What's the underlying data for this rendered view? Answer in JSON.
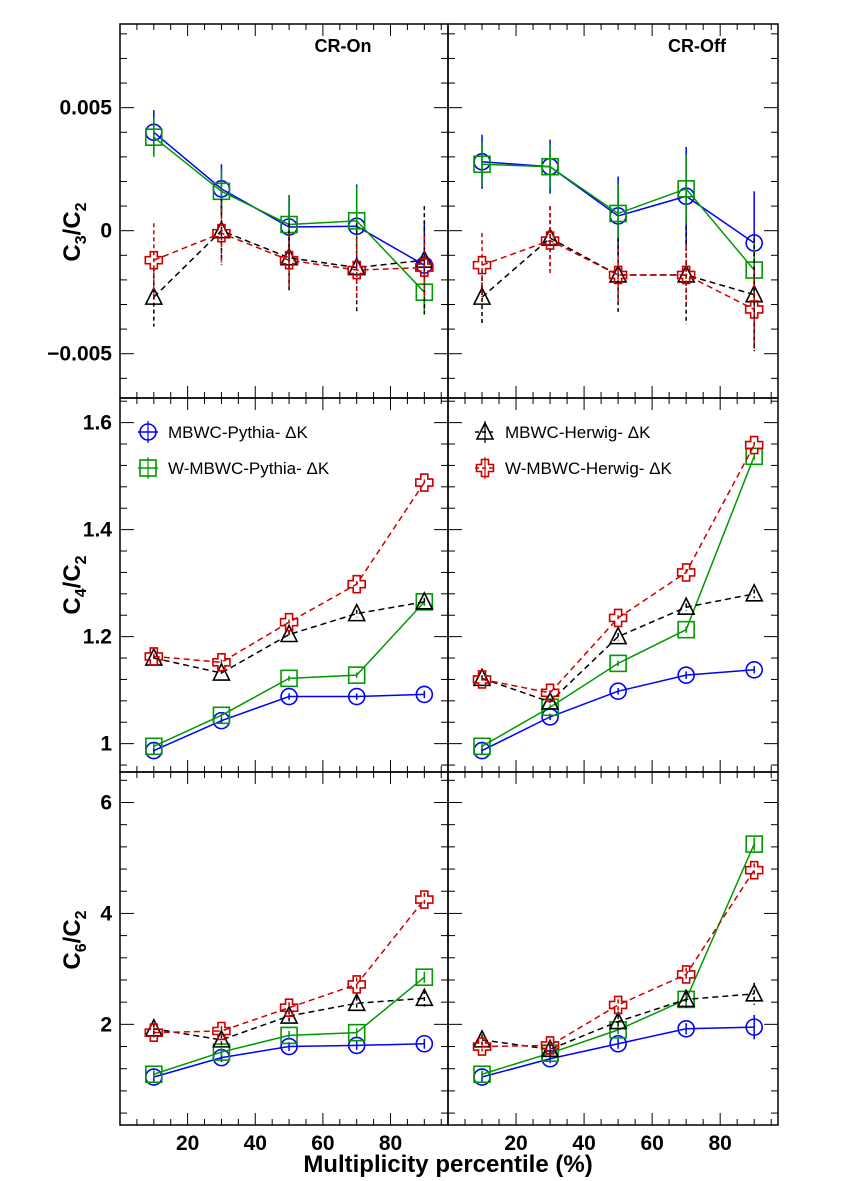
{
  "figure": {
    "xlabel": "Multiplicity percentile (%)",
    "columns": [
      "CR-On",
      "CR-Off"
    ],
    "xticks": [
      "20",
      "40",
      "60",
      "80"
    ]
  },
  "legend": [
    {
      "label": "MBWC-Pythia- ΔK",
      "series": "mbwc_pythia"
    },
    {
      "label": "W-MBWC-Pythia- ΔK",
      "series": "wmbwc_pythia"
    },
    {
      "label": "MBWC-Herwig- ΔK",
      "series": "mbwc_herwig"
    },
    {
      "label": "W-MBWC-Herwig- ΔK",
      "series": "wmbwc_herwig"
    }
  ],
  "chart_data": [
    {
      "type": "line",
      "panel": "C3/C2 CR-On",
      "ylabel": "C3/C2",
      "column_title": "CR-On",
      "x": [
        10,
        30,
        50,
        70,
        90
      ],
      "xlim": [
        0,
        97
      ],
      "ylim": [
        -0.0068,
        0.0084
      ],
      "yticks": [
        -0.005,
        0,
        0.005
      ],
      "yticklabels": [
        "−0.005",
        "0",
        "0.005"
      ],
      "series": [
        {
          "name": "MBWC-Pythia- ΔK",
          "values": [
            0.004,
            0.0017,
            0.00015,
            0.00018,
            -0.0014
          ],
          "errors": [
            0.0009,
            0.001,
            0.0013,
            0.0017,
            0.0018
          ]
        },
        {
          "name": "W-MBWC-Pythia- ΔK",
          "values": [
            0.0038,
            0.0016,
            0.00025,
            0.0004,
            -0.0025
          ],
          "errors": [
            0.0008,
            0.0009,
            0.0012,
            0.0014,
            0.0009
          ]
        },
        {
          "name": "MBWC-Herwig- ΔK",
          "values": [
            -0.0027,
            0.0,
            -0.0011,
            -0.0015,
            -0.0012
          ],
          "errors": [
            0.0012,
            0.0013,
            0.0014,
            0.0018,
            0.0022
          ]
        },
        {
          "name": "W-MBWC-Herwig- ΔK",
          "values": [
            -0.0012,
            -0.0001,
            -0.0012,
            -0.0016,
            -0.0015
          ],
          "errors": [
            0.0015,
            0.0013,
            0.0011,
            0.0013,
            0.0013
          ]
        }
      ]
    },
    {
      "type": "line",
      "panel": "C3/C2 CR-Off",
      "ylabel": "C3/C2",
      "column_title": "CR-Off",
      "x": [
        10,
        30,
        50,
        70,
        90
      ],
      "xlim": [
        0,
        97
      ],
      "ylim": [
        -0.0068,
        0.0084
      ],
      "series": [
        {
          "name": "MBWC-Pythia- ΔK",
          "values": [
            0.0028,
            0.0026,
            0.0006,
            0.0014,
            -0.0005
          ],
          "errors": [
            0.0011,
            0.0011,
            0.0016,
            0.002,
            0.0021
          ]
        },
        {
          "name": "W-MBWC-Pythia- ΔK",
          "values": [
            0.0027,
            0.0026,
            0.0007,
            0.0017,
            -0.0016
          ],
          "errors": [
            0.0009,
            0.0009,
            0.0012,
            0.0014,
            0.0011
          ]
        },
        {
          "name": "MBWC-Herwig- ΔK",
          "values": [
            -0.0027,
            -0.0003,
            -0.0018,
            -0.0018,
            -0.0026
          ],
          "errors": [
            0.0011,
            0.0013,
            0.0015,
            0.002,
            0.0023
          ]
        },
        {
          "name": "W-MBWC-Herwig- ΔK",
          "values": [
            -0.0014,
            -0.0004,
            -0.0018,
            -0.0018,
            -0.0032
          ],
          "errors": [
            0.0013,
            0.0014,
            0.0011,
            0.0012,
            0.0016
          ]
        }
      ]
    },
    {
      "type": "line",
      "panel": "C4/C2 CR-On",
      "ylabel": "C4/C2",
      "x": [
        10,
        30,
        50,
        70,
        90
      ],
      "xlim": [
        0,
        97
      ],
      "ylim": [
        0.947,
        1.646
      ],
      "yticks": [
        1.0,
        1.2,
        1.4,
        1.6
      ],
      "yticklabels": [
        "1",
        "1.2",
        "1.4",
        "1.6"
      ],
      "series": [
        {
          "name": "MBWC-Pythia- ΔK",
          "values": [
            0.987,
            1.043,
            1.088,
            1.088,
            1.092
          ],
          "errors": [
            0.006,
            0.006,
            0.006,
            0.006,
            0.007
          ]
        },
        {
          "name": "W-MBWC-Pythia- ΔK",
          "values": [
            0.995,
            1.053,
            1.122,
            1.128,
            1.265
          ],
          "errors": [
            0.005,
            0.005,
            0.005,
            0.005,
            0.006
          ]
        },
        {
          "name": "MBWC-Herwig- ΔK",
          "values": [
            1.16,
            1.132,
            1.204,
            1.243,
            1.265
          ],
          "errors": [
            0.006,
            0.006,
            0.006,
            0.007,
            0.007
          ]
        },
        {
          "name": "W-MBWC-Herwig- ΔK",
          "values": [
            1.163,
            1.152,
            1.227,
            1.298,
            1.488
          ],
          "errors": [
            0.005,
            0.005,
            0.005,
            0.006,
            0.006
          ]
        }
      ]
    },
    {
      "type": "line",
      "panel": "C4/C2 CR-Off",
      "ylabel": "C4/C2",
      "x": [
        10,
        30,
        50,
        70,
        90
      ],
      "xlim": [
        0,
        97
      ],
      "ylim": [
        0.947,
        1.646
      ],
      "series": [
        {
          "name": "MBWC-Pythia- ΔK",
          "values": [
            0.987,
            1.05,
            1.098,
            1.128,
            1.138
          ],
          "errors": [
            0.006,
            0.006,
            0.006,
            0.007,
            0.007
          ]
        },
        {
          "name": "W-MBWC-Pythia- ΔK",
          "values": [
            0.995,
            1.068,
            1.15,
            1.213,
            1.537
          ],
          "errors": [
            0.005,
            0.005,
            0.005,
            0.006,
            0.006
          ]
        },
        {
          "name": "MBWC-Herwig- ΔK",
          "values": [
            1.122,
            1.078,
            1.2,
            1.255,
            1.28
          ],
          "errors": [
            0.006,
            0.006,
            0.007,
            0.007,
            0.008
          ]
        },
        {
          "name": "W-MBWC-Herwig- ΔK",
          "values": [
            1.12,
            1.095,
            1.235,
            1.32,
            1.558
          ],
          "errors": [
            0.005,
            0.005,
            0.005,
            0.006,
            0.006
          ]
        }
      ]
    },
    {
      "type": "line",
      "panel": "C6/C2 CR-On",
      "ylabel": "C6/C2",
      "x": [
        10,
        30,
        50,
        70,
        90
      ],
      "xlim": [
        0,
        97
      ],
      "ylim": [
        0.185,
        6.55
      ],
      "yticks": [
        2,
        4,
        6
      ],
      "yticklabels": [
        "2",
        "4",
        "6"
      ],
      "series": [
        {
          "name": "MBWC-Pythia- ΔK",
          "values": [
            1.05,
            1.4,
            1.6,
            1.62,
            1.65
          ],
          "errors": [
            0.08,
            0.08,
            0.08,
            0.08,
            0.09
          ]
        },
        {
          "name": "W-MBWC-Pythia- ΔK",
          "values": [
            1.1,
            1.5,
            1.8,
            1.85,
            2.85
          ],
          "errors": [
            0.07,
            0.07,
            0.08,
            0.08,
            0.1
          ]
        },
        {
          "name": "MBWC-Herwig- ΔK",
          "values": [
            1.92,
            1.72,
            2.15,
            2.38,
            2.47
          ],
          "errors": [
            0.1,
            0.1,
            0.1,
            0.12,
            0.15
          ]
        },
        {
          "name": "W-MBWC-Herwig- ΔK",
          "values": [
            1.85,
            1.88,
            2.3,
            2.72,
            4.25
          ],
          "errors": [
            0.09,
            0.09,
            0.1,
            0.12,
            0.12
          ]
        }
      ]
    },
    {
      "type": "line",
      "panel": "C6/C2 CR-Off",
      "ylabel": "C6/C2",
      "x": [
        10,
        30,
        50,
        70,
        90
      ],
      "xlim": [
        0,
        97
      ],
      "ylim": [
        0.185,
        6.55
      ],
      "series": [
        {
          "name": "MBWC-Pythia- ΔK",
          "values": [
            1.05,
            1.38,
            1.65,
            1.92,
            1.95
          ],
          "errors": [
            0.08,
            0.08,
            0.09,
            0.1,
            0.22
          ]
        },
        {
          "name": "W-MBWC-Pythia- ΔK",
          "values": [
            1.1,
            1.48,
            1.9,
            2.45,
            5.25
          ],
          "errors": [
            0.07,
            0.07,
            0.08,
            0.1,
            0.12
          ]
        },
        {
          "name": "MBWC-Herwig- ΔK",
          "values": [
            1.72,
            1.55,
            2.05,
            2.45,
            2.55
          ],
          "errors": [
            0.1,
            0.1,
            0.12,
            0.15,
            0.2
          ]
        },
        {
          "name": "W-MBWC-Herwig- ΔK",
          "values": [
            1.6,
            1.62,
            2.35,
            2.9,
            4.78
          ],
          "errors": [
            0.09,
            0.09,
            0.1,
            0.12,
            0.12
          ]
        }
      ]
    }
  ],
  "styles": {
    "mbwc_pythia": {
      "color": "#0000ff",
      "marker": "circle",
      "dash": "solid"
    },
    "wmbwc_pythia": {
      "color": "#009900",
      "marker": "square",
      "dash": "solid"
    },
    "mbwc_herwig": {
      "color": "#000000",
      "marker": "triangle",
      "dash": "dashed"
    },
    "wmbwc_herwig": {
      "color": "#cc0000",
      "marker": "cross",
      "dash": "dashed"
    }
  }
}
